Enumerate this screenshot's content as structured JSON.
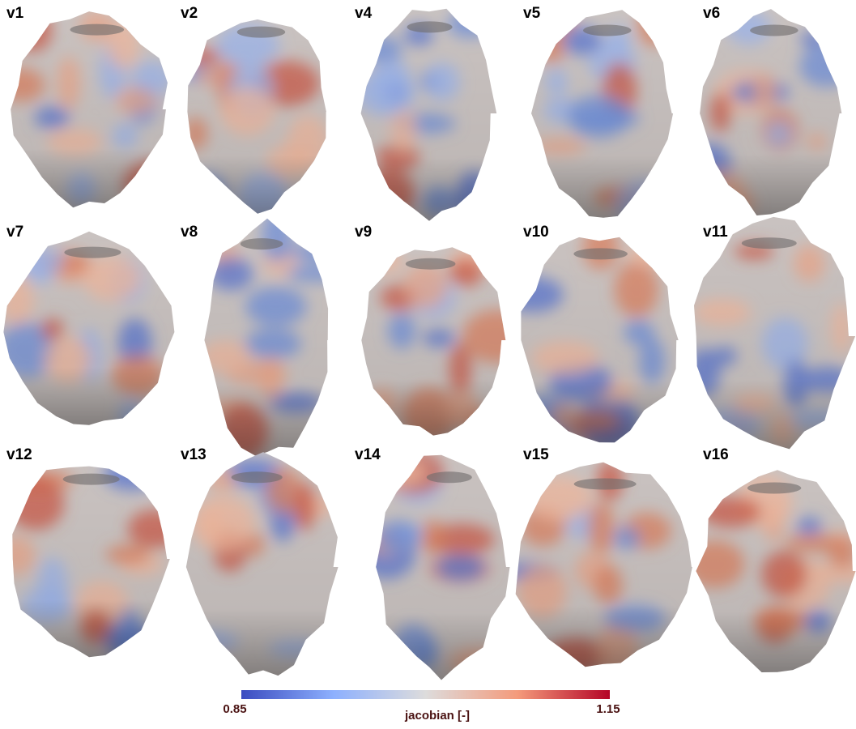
{
  "panels": [
    {
      "label": "v1"
    },
    {
      "label": "v2"
    },
    {
      "label": "v4"
    },
    {
      "label": "v5"
    },
    {
      "label": "v6"
    },
    {
      "label": "v7"
    },
    {
      "label": "v8"
    },
    {
      "label": "v9"
    },
    {
      "label": "v10"
    },
    {
      "label": "v11"
    },
    {
      "label": "v12"
    },
    {
      "label": "v13"
    },
    {
      "label": "v14"
    },
    {
      "label": "v15"
    },
    {
      "label": "v16"
    }
  ],
  "colorbar": {
    "title": "jacobian [-]",
    "min": 0.85,
    "max": 1.15
  }
}
